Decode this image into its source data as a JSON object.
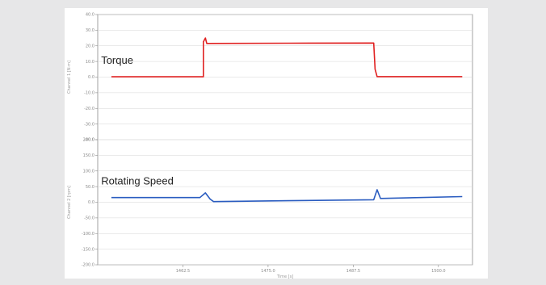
{
  "chart_data": {
    "type": "line",
    "xlabel": "Time [s]",
    "x_ticks": [
      1462.5,
      1475.0,
      1487.5,
      1500.0
    ],
    "xlim": [
      1450,
      1505
    ],
    "grid": true,
    "panels": [
      {
        "ylabel": "Channel 1 [N·m]",
        "ylim": [
          -40,
          40
        ],
        "y_ticks": [
          "40.0",
          "30.0",
          "20.0",
          "10.0",
          "0.0",
          "-10.0",
          "-20.0",
          "-30.0",
          "-40.0"
        ],
        "series": [
          {
            "name": "Torque",
            "color": "#e02020",
            "x": [
              1452.0,
              1465.5,
              1465.5,
              1465.8,
              1466.0,
              1478.0,
              1490.5,
              1490.7,
              1491.0,
              1503.5
            ],
            "y": [
              0.2,
              0.2,
              22.5,
              25.0,
              21.5,
              21.7,
              21.8,
              5.0,
              0.3,
              0.3
            ]
          }
        ]
      },
      {
        "ylabel": "Channel 2 [rpm]",
        "ylim": [
          -200,
          200
        ],
        "y_ticks": [
          "200.0",
          "150.0",
          "100.0",
          "50.0",
          "0.0",
          "-50.0",
          "-100.0",
          "-150.0",
          "-200.0"
        ],
        "series": [
          {
            "name": "Rotating Speed",
            "color": "#2a5cc0",
            "x": [
              1452.0,
              1465.0,
              1465.8,
              1466.5,
              1467.0,
              1478.0,
              1490.5,
              1491.0,
              1491.5,
              1503.5
            ],
            "y": [
              15,
              15,
              30,
              10,
              2,
              5,
              8,
              40,
              12,
              18
            ]
          }
        ]
      }
    ]
  }
}
